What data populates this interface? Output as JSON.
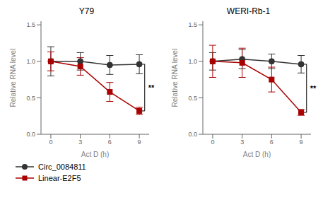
{
  "chart_data": [
    {
      "type": "line",
      "title": "Y79",
      "x_label": "Act D (h)",
      "y_label": "Relative RNA level",
      "x": [
        0,
        3,
        6,
        9
      ],
      "xlim": [
        -1,
        10
      ],
      "xticks": [
        0,
        3,
        6,
        9
      ],
      "ylim": [
        0.0,
        1.55
      ],
      "yticks": [
        {
          "value": 0.0,
          "label": "0.0"
        },
        0.5,
        {
          "value": 1.0,
          "label": "1.0"
        },
        1.5
      ],
      "legend": "lower left",
      "annotation": "**",
      "series": [
        {
          "name": "Circ_0084811",
          "color": "#333333",
          "marker": "circle",
          "values": [
            1.0,
            1.0,
            0.95,
            0.96
          ],
          "errors": [
            0.2,
            0.12,
            0.13,
            0.13
          ]
        },
        {
          "name": "Linear-E2F5",
          "color": "#aa0000",
          "marker": "square",
          "values": [
            1.0,
            0.93,
            0.58,
            0.32
          ],
          "errors": [
            0.13,
            0.12,
            0.13,
            0.05
          ]
        }
      ]
    },
    {
      "type": "line",
      "title": "WERI-Rb-1",
      "x_label": "Act D (h)",
      "y_label": "Relative RNA level",
      "x": [
        0,
        3,
        6,
        9
      ],
      "xlim": [
        -1,
        10
      ],
      "xticks": [
        0,
        3,
        6,
        9
      ],
      "ylim": [
        0.0,
        1.55
      ],
      "yticks": [
        {
          "value": 0.0,
          "label": "0.0"
        },
        0.5,
        {
          "value": 1.0,
          "label": "1.0"
        },
        1.5
      ],
      "annotation": "**",
      "series": [
        {
          "name": "Circ_0084811",
          "color": "#333333",
          "marker": "circle",
          "values": [
            1.0,
            1.03,
            1.0,
            0.96
          ],
          "errors": [
            0.12,
            0.13,
            0.1,
            0.12
          ]
        },
        {
          "name": "Linear-E2F5",
          "color": "#aa0000",
          "marker": "square",
          "values": [
            1.0,
            0.98,
            0.75,
            0.3
          ],
          "errors": [
            0.22,
            0.2,
            0.17,
            0.04
          ]
        }
      ]
    }
  ]
}
